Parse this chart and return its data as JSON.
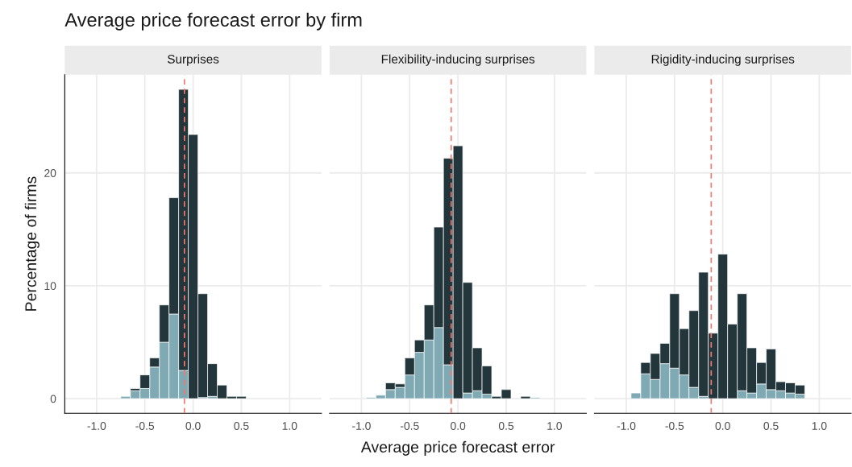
{
  "chart_data": [
    {
      "type": "bar",
      "title": "Surprises",
      "ylabel": "Percentage of firms",
      "annotations": [
        "Average price forecast error by firm"
      ],
      "x": [
        -0.7,
        -0.6,
        -0.5,
        -0.4,
        -0.3,
        -0.2,
        -0.1,
        0.0,
        0.1,
        0.2,
        0.3,
        0.4,
        0.5
      ],
      "stacked": true,
      "series": [
        {
          "color": "#7faab4",
          "values": [
            0.2,
            0.7,
            0.9,
            2.8,
            5.0,
            7.5,
            2.5,
            null,
            0.1,
            0.2,
            null,
            null,
            null
          ]
        },
        {
          "color": "#23363b",
          "values": [
            null,
            0.2,
            1.2,
            0.8,
            3.3,
            10.3,
            24.9,
            23.4,
            9.2,
            2.9,
            1.2,
            0.2,
            0.2
          ]
        }
      ],
      "xlim": [
        -1.33,
        1.33
      ],
      "ylim": [
        -1.3,
        28.7
      ],
      "xticks": [
        {
          "value": -1.0,
          "label": "-1.0"
        },
        {
          "value": -0.5,
          "label": "-0.5"
        },
        {
          "value": 0.0,
          "label": "0.0"
        },
        {
          "value": 0.5,
          "label": "0.5"
        },
        {
          "value": 1.0,
          "label": "1.0"
        }
      ],
      "yticks": [
        0,
        10,
        20
      ],
      "grid": true,
      "ref_lines": [
        {
          "axis": "x",
          "value": -0.09,
          "color": "#f8766d",
          "line_style": "dashed"
        }
      ]
    },
    {
      "type": "bar",
      "title": "Flexibility-inducing surprises",
      "xlabel": "Average price forecast error",
      "x": [
        -0.9,
        -0.8,
        -0.7,
        -0.6,
        -0.5,
        -0.4,
        -0.3,
        -0.2,
        -0.1,
        0.0,
        0.1,
        0.2,
        0.3,
        0.4,
        0.5,
        0.6,
        0.7,
        0.8
      ],
      "stacked": true,
      "series": [
        {
          "color": "#7faab4",
          "values": [
            0.1,
            0.3,
            0.8,
            1.0,
            2.1,
            4.1,
            5.2,
            6.3,
            3.0,
            null,
            0.5,
            0.7,
            0.4,
            null,
            null,
            null,
            null,
            0.1
          ]
        },
        {
          "color": "#23363b",
          "values": [
            null,
            null,
            0.6,
            0.3,
            1.5,
            1.1,
            3.1,
            8.9,
            18.3,
            22.4,
            9.8,
            3.8,
            2.5,
            0.2,
            0.8,
            null,
            0.2,
            null
          ]
        }
      ],
      "xlim": [
        -1.33,
        1.33
      ],
      "ylim": [
        -1.3,
        28.7
      ],
      "xticks": [
        {
          "value": -1.0,
          "label": "-1.0"
        },
        {
          "value": -0.5,
          "label": "-0.5"
        },
        {
          "value": 0.0,
          "label": "0.0"
        },
        {
          "value": 0.5,
          "label": "0.5"
        },
        {
          "value": 1.0,
          "label": "1.0"
        }
      ],
      "yticks": [
        0,
        10,
        20
      ],
      "grid": true,
      "tick_labels": "x",
      "ref_lines": [
        {
          "axis": "x",
          "value": -0.07,
          "color": "#f8766d",
          "line_style": "dashed"
        }
      ]
    },
    {
      "type": "bar",
      "title": "Rigidity-inducing surprises",
      "x": [
        -0.9,
        -0.8,
        -0.7,
        -0.6,
        -0.5,
        -0.4,
        -0.3,
        -0.2,
        -0.1,
        0.0,
        0.1,
        0.2,
        0.3,
        0.4,
        0.5,
        0.6,
        0.7,
        0.8
      ],
      "stacked": true,
      "series": [
        {
          "color": "#7faab4",
          "values": [
            0.5,
            2.2,
            1.7,
            3.1,
            2.7,
            2.1,
            1.0,
            0.2,
            null,
            null,
            null,
            0.7,
            0.5,
            1.3,
            0.8,
            0.7,
            0.5,
            0.4
          ]
        },
        {
          "color": "#23363b",
          "values": [
            null,
            1.0,
            2.3,
            1.8,
            6.6,
            4.1,
            6.8,
            11.0,
            5.8,
            12.8,
            6.6,
            8.6,
            4.0,
            1.9,
            3.6,
            0.8,
            0.9,
            0.8
          ]
        }
      ],
      "xlim": [
        -1.33,
        1.33
      ],
      "ylim": [
        -1.3,
        28.7
      ],
      "xticks": [
        {
          "value": -1.0,
          "label": "-1.0"
        },
        {
          "value": -0.5,
          "label": "-0.5"
        },
        {
          "value": 0.0,
          "label": "0.0"
        },
        {
          "value": 0.5,
          "label": "0.5"
        },
        {
          "value": 1.0,
          "label": "1.0"
        }
      ],
      "yticks": [
        0,
        10,
        20
      ],
      "grid": true,
      "tick_labels": "x",
      "ref_lines": [
        {
          "axis": "x",
          "value": -0.12,
          "color": "#f8766d",
          "line_style": "dashed"
        }
      ]
    }
  ]
}
